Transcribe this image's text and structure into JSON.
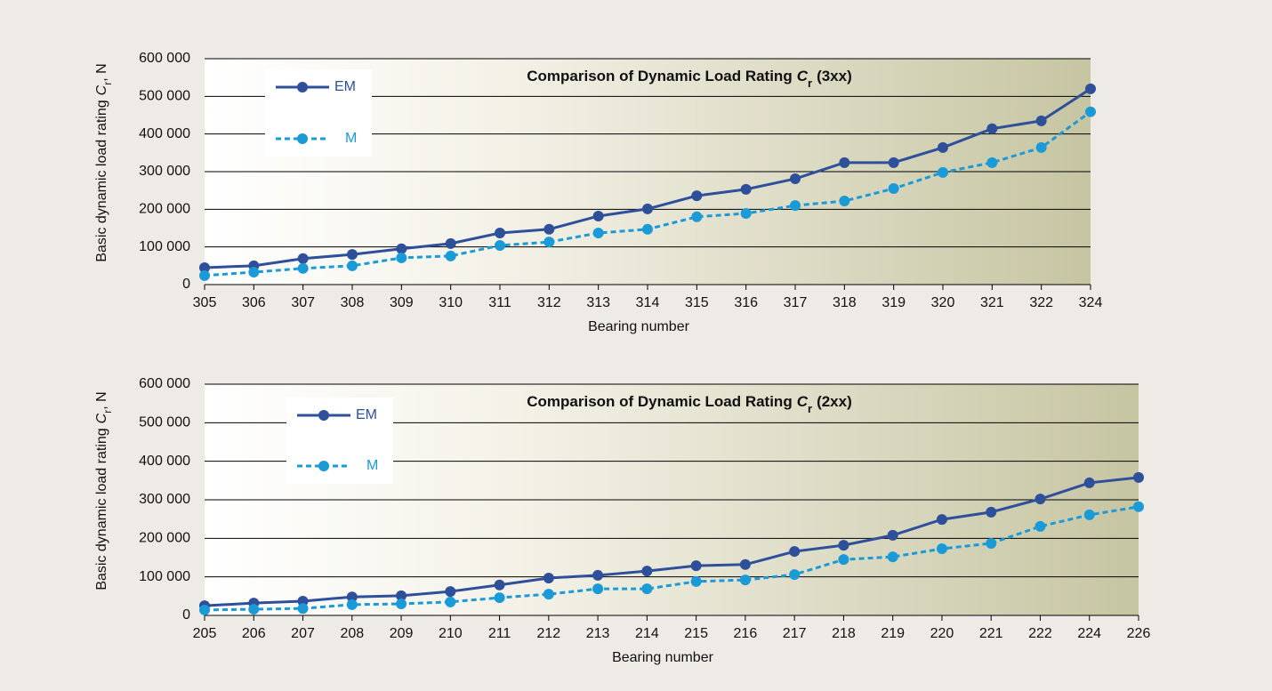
{
  "chart_data": [
    {
      "type": "line",
      "title": "Comparison of Dynamic Load Rating",
      "title_symbol": "C",
      "title_subscript": "r",
      "title_suffix": "(3xx)",
      "ylabel": "Basic dynamic load rating",
      "ylabel_symbol": "C",
      "ylabel_subscript": "r",
      "ylabel_suffix": ", N",
      "xlabel": "Bearing number",
      "categories": [
        "305",
        "306",
        "307",
        "308",
        "309",
        "310",
        "311",
        "312",
        "313",
        "314",
        "315",
        "316",
        "317",
        "318",
        "319",
        "320",
        "321",
        "322",
        "324"
      ],
      "series": [
        {
          "name": "EM",
          "color": "#2e4f9a",
          "dashed": false,
          "values": [
            45000,
            50000,
            69000,
            80000,
            95000,
            109000,
            137000,
            147000,
            182000,
            201000,
            236000,
            253000,
            281000,
            324000,
            324000,
            364000,
            414000,
            435000,
            520000
          ]
        },
        {
          "name": "M",
          "color": "#1a9ad6",
          "dashed": true,
          "values": [
            24000,
            33000,
            43000,
            50000,
            71000,
            76000,
            104000,
            113000,
            137000,
            147000,
            180000,
            189000,
            210000,
            222000,
            255000,
            298000,
            324000,
            364000,
            459000
          ]
        }
      ],
      "ylim": [
        0,
        600000
      ],
      "yticks": [
        0,
        {
          "value": 100000,
          "label": "100 000"
        },
        {
          "value": 200000,
          "label": "200 000"
        },
        {
          "value": 300000,
          "label": "300 000"
        },
        {
          "value": 400000,
          "label": "400 000"
        },
        {
          "value": 500000,
          "label": "500 000"
        },
        {
          "value": 600000,
          "label": "600 000"
        }
      ],
      "grid": true
    },
    {
      "type": "line",
      "title": "Comparison of Dynamic Load Rating",
      "title_symbol": "C",
      "title_subscript": "r",
      "title_suffix": "(2xx)",
      "ylabel": "Basic dynamic load rating",
      "ylabel_symbol": "C",
      "ylabel_subscript": "r",
      "ylabel_suffix": ", N",
      "xlabel": "Bearing number",
      "categories": [
        "205",
        "206",
        "207",
        "208",
        "209",
        "210",
        "211",
        "212",
        "213",
        "214",
        "215",
        "216",
        "217",
        "218",
        "219",
        "220",
        "221",
        "222",
        "224",
        "226"
      ],
      "series": [
        {
          "name": "EM",
          "color": "#2e4f9a",
          "dashed": false,
          "values": [
            25000,
            32000,
            37000,
            48000,
            51000,
            62000,
            79000,
            97000,
            104000,
            115000,
            129000,
            132000,
            166000,
            182000,
            208000,
            249000,
            268000,
            302000,
            344000,
            358000
          ]
        },
        {
          "name": "M",
          "color": "#1a9ad6",
          "dashed": true,
          "values": [
            14000,
            16000,
            18000,
            28000,
            30000,
            35000,
            46000,
            55000,
            69000,
            69000,
            88000,
            92000,
            106000,
            145000,
            152000,
            173000,
            187000,
            231000,
            261000,
            282000
          ]
        }
      ],
      "ylim": [
        0,
        600000
      ],
      "yticks": [
        0,
        {
          "value": 100000,
          "label": "100 000"
        },
        {
          "value": 200000,
          "label": "200 000"
        },
        {
          "value": 300000,
          "label": "300 000"
        },
        {
          "value": 400000,
          "label": "400 000"
        },
        {
          "value": 500000,
          "label": "500 000"
        },
        {
          "value": 600000,
          "label": "600 000"
        }
      ],
      "grid": true
    }
  ]
}
